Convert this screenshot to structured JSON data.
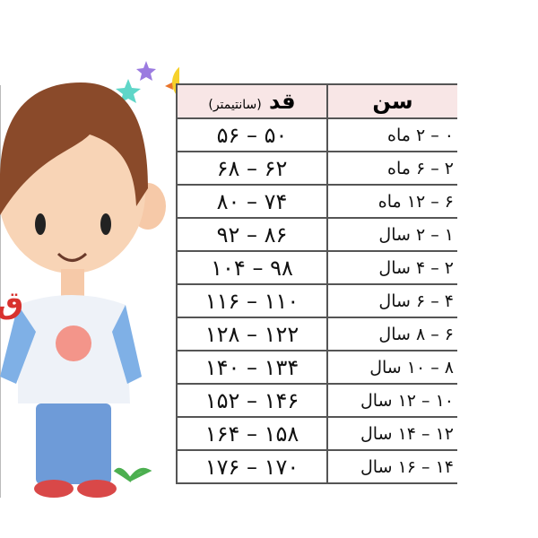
{
  "side_letter": "ق",
  "table": {
    "header": {
      "age": "سن",
      "height": "قد",
      "height_unit": "(سانتیمتر)"
    },
    "rows": [
      {
        "age": "۰ – ۲ ماه",
        "height": "۵۰ – ۵۶"
      },
      {
        "age": "۲ – ۶ ماه",
        "height": "۶۲ – ۶۸"
      },
      {
        "age": "۶ – ۱۲ ماه",
        "height": "۷۴ – ۸۰"
      },
      {
        "age": "۱ – ۲ سال",
        "height": "۸۶ – ۹۲"
      },
      {
        "age": "۲ – ۴ سال",
        "height": "۹۸ – ۱۰۴"
      },
      {
        "age": "۴ – ۶ سال",
        "height": "۱۱۰ – ۱۱۶"
      },
      {
        "age": "۶ – ۸ سال",
        "height": "۱۲۲ – ۱۲۸"
      },
      {
        "age": "۸ – ۱۰ سال",
        "height": "۱۳۴ – ۱۴۰"
      },
      {
        "age": "۱۰ – ۱۲ سال",
        "height": "۱۴۶ – ۱۵۲"
      },
      {
        "age": "۱۲ – ۱۴ سال",
        "height": "۱۵۸ – ۱۶۴"
      },
      {
        "age": "۱۴ – ۱۶ سال",
        "height": "۱۷۰ – ۱۷۶"
      }
    ]
  },
  "colors": {
    "header_bg": "#f8e6e6",
    "accent_red": "#d8322e",
    "hair": "#8a4a2a",
    "sleeve": "#7fb0e6"
  }
}
